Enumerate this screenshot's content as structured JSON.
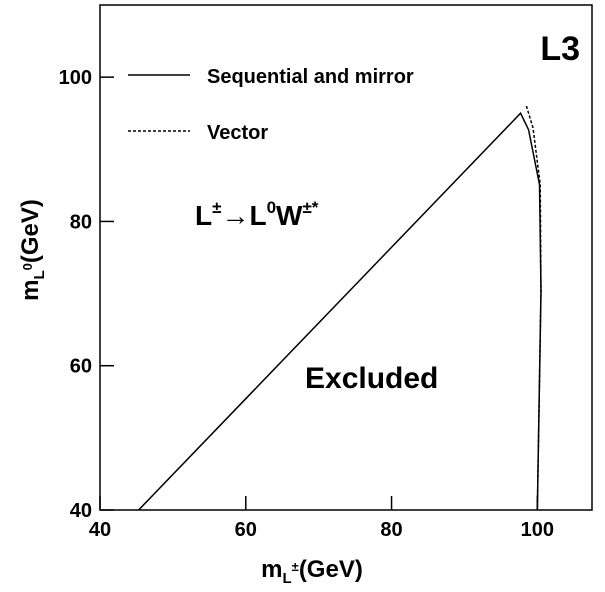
{
  "chart_data": {
    "type": "line",
    "annotation_corner": "L3",
    "x_label": {
      "main": "m",
      "sub": "L",
      "sup": "±",
      "unit": "(GeV)"
    },
    "y_label": {
      "main": "m",
      "sub": "L",
      "sup": "0",
      "unit": "(GeV)"
    },
    "process": {
      "a": "L",
      "a_sup": "±",
      "arrow": "→",
      "b": "L",
      "b_sup": "0",
      "c": "W",
      "c_sup": "±*"
    },
    "region_label": "Excluded",
    "series": [
      {
        "name": "Sequential and mirror",
        "color": "#000000",
        "linestyle": "solid",
        "x": [
          45.3,
          97.7,
          98.8,
          100.3,
          100.5,
          100.0
        ],
        "values": [
          40,
          95.0,
          92.7,
          85.1,
          70.3,
          40
        ]
      },
      {
        "name": "Vector",
        "color": "#000000",
        "linestyle": "dashed",
        "x": [
          98.5,
          99.4,
          100.4,
          100.5,
          100.0
        ],
        "values": [
          96.0,
          93.0,
          85.1,
          70.3,
          40
        ]
      }
    ],
    "xlim": [
      40,
      107.5
    ],
    "xticks": [
      40,
      60,
      80,
      100
    ],
    "ylim": [
      40,
      110
    ],
    "yticks": [
      40,
      60,
      80,
      100
    ],
    "grid": false,
    "legend": "upper left"
  }
}
